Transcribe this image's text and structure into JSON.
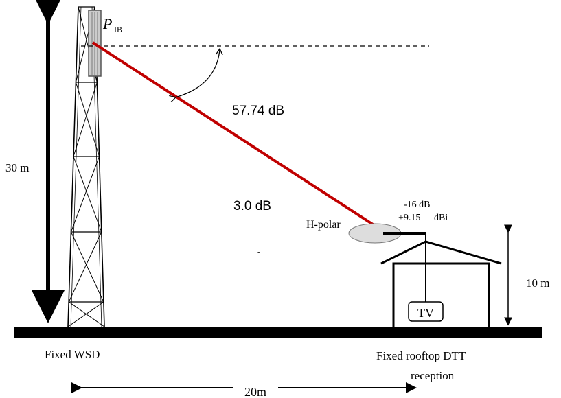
{
  "labels": {
    "tx_power": "P",
    "tx_power_sub": "IB",
    "path_loss": "57.74 dB",
    "tower_height": "30 m",
    "gain_loss": "3.0 dB",
    "polarization": "H-polar",
    "rx_loss": "-16 dB",
    "rx_gain": "+9.15",
    "rx_gain_unit": "dBi",
    "stray": "-",
    "house_height": "10 m",
    "tv": "TV",
    "left_caption": "Fixed WSD",
    "right_caption_1": "Fixed rooftop DTT",
    "right_caption_2": "reception",
    "distance": "20m"
  }
}
